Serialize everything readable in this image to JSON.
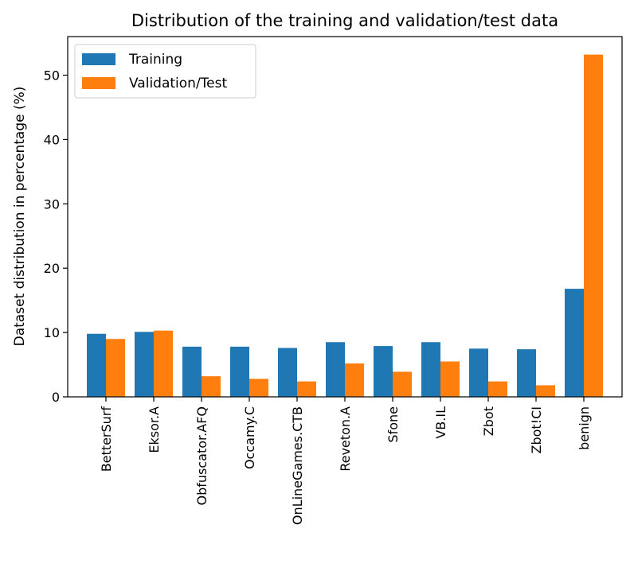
{
  "chart_data": {
    "type": "bar",
    "title": "Distribution of the training and validation/test data",
    "xlabel": "",
    "ylabel": "Dataset distribution in percentage (%)",
    "categories": [
      "BetterSurf",
      "Eksor.A",
      "Obfuscator.AFQ",
      "Occamy.C",
      "OnLineGames.CTB",
      "Reveton.A",
      "Sfone",
      "VB.IL",
      "Zbot",
      "Zbot!CI",
      "benign"
    ],
    "series": [
      {
        "name": "Training",
        "color": "#1f77b4",
        "values": [
          9.8,
          10.1,
          7.8,
          7.8,
          7.6,
          8.5,
          7.9,
          8.5,
          7.5,
          7.4,
          16.8
        ]
      },
      {
        "name": "Validation/Test",
        "color": "#ff7f0e",
        "values": [
          9.0,
          10.3,
          3.2,
          2.8,
          2.4,
          5.2,
          3.9,
          5.5,
          2.4,
          1.8,
          53.2
        ]
      }
    ],
    "ylim": [
      0,
      56
    ],
    "yticks": [
      0,
      10,
      20,
      30,
      40,
      50
    ],
    "grid": false,
    "legend_position": "top-left"
  }
}
